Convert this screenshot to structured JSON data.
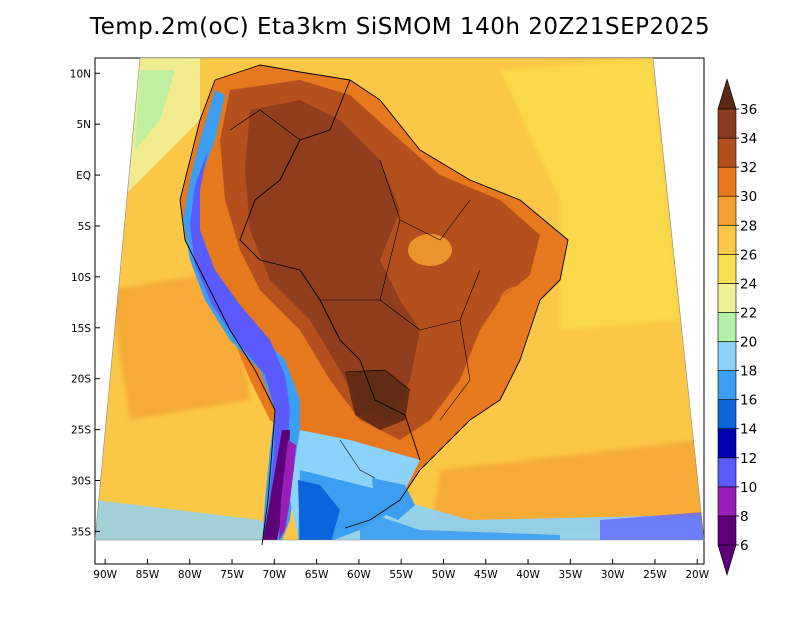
{
  "title": "Temp.2m(oC) Eta3km SiSMOM 140h 20Z21SEP2025",
  "map": {
    "lat_ticks": [
      {
        "lat": 10,
        "label": "10N"
      },
      {
        "lat": 5,
        "label": "5N"
      },
      {
        "lat": 0,
        "label": "EQ"
      },
      {
        "lat": -5,
        "label": "5S"
      },
      {
        "lat": -10,
        "label": "10S"
      },
      {
        "lat": -15,
        "label": "15S"
      },
      {
        "lat": -20,
        "label": "20S"
      },
      {
        "lat": -25,
        "label": "25S"
      },
      {
        "lat": -30,
        "label": "30S"
      },
      {
        "lat": -35,
        "label": "35S"
      }
    ],
    "lon_ticks": [
      {
        "lon": -90,
        "label": "90W"
      },
      {
        "lon": -85,
        "label": "85W"
      },
      {
        "lon": -80,
        "label": "80W"
      },
      {
        "lon": -75,
        "label": "75W"
      },
      {
        "lon": -70,
        "label": "70W"
      },
      {
        "lon": -65,
        "label": "65W"
      },
      {
        "lon": -60,
        "label": "60W"
      },
      {
        "lon": -55,
        "label": "55W"
      },
      {
        "lon": -50,
        "label": "50W"
      },
      {
        "lon": -45,
        "label": "45W"
      },
      {
        "lon": -40,
        "label": "40W"
      },
      {
        "lon": -35,
        "label": "35W"
      },
      {
        "lon": -30,
        "label": "30W"
      },
      {
        "lon": -25,
        "label": "25W"
      },
      {
        "lon": -20,
        "label": "20W"
      }
    ]
  },
  "colorbar": {
    "units": "oC",
    "bins": [
      {
        "from": 6,
        "to": 8,
        "color": "#5e007a"
      },
      {
        "from": 8,
        "to": 10,
        "color": "#9a1fb8"
      },
      {
        "from": 10,
        "to": 12,
        "color": "#5a5aff"
      },
      {
        "from": 12,
        "to": 14,
        "color": "#0000b0"
      },
      {
        "from": 14,
        "to": 16,
        "color": "#0a64dc"
      },
      {
        "from": 16,
        "to": 18,
        "color": "#3c9ef0"
      },
      {
        "from": 18,
        "to": 20,
        "color": "#8cd2fa"
      },
      {
        "from": 20,
        "to": 22,
        "color": "#b4f0a8"
      },
      {
        "from": 22,
        "to": 24,
        "color": "#f0f096"
      },
      {
        "from": 24,
        "to": 26,
        "color": "#fae050"
      },
      {
        "from": 26,
        "to": 28,
        "color": "#fac846"
      },
      {
        "from": 28,
        "to": 30,
        "color": "#f5a030"
      },
      {
        "from": 30,
        "to": 32,
        "color": "#e6781e"
      },
      {
        "from": 32,
        "to": 34,
        "color": "#b4501e"
      },
      {
        "from": 34,
        "to": 36,
        "color": "#8c3c1e"
      }
    ],
    "labels": [
      "6",
      "8",
      "10",
      "12",
      "14",
      "16",
      "18",
      "20",
      "22",
      "24",
      "26",
      "28",
      "30",
      "32",
      "34",
      "36"
    ],
    "under_color": "#5e007a",
    "over_color": "#5a2814"
  }
}
